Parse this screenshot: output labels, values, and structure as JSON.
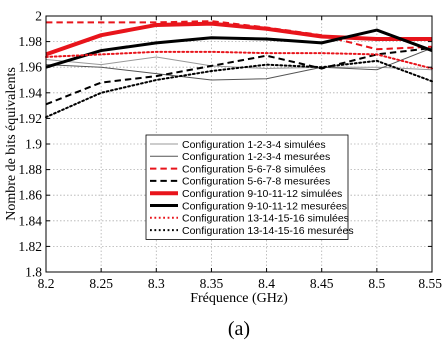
{
  "chart_data": {
    "type": "line",
    "title": "",
    "xlabel": "Fréquence (GHz)",
    "ylabel": "Nombre de bits équivalents",
    "caption": "(a)",
    "x": [
      8.2,
      8.25,
      8.3,
      8.35,
      8.4,
      8.45,
      8.5,
      8.55
    ],
    "xlim": [
      8.2,
      8.55
    ],
    "ylim": [
      1.8,
      2.0
    ],
    "xticks": [
      "8.2",
      "8.25",
      "8.3",
      "8.35",
      "8.4",
      "8.45",
      "8.5",
      "8.55"
    ],
    "yticks": [
      "1.8",
      "1.82",
      "1.84",
      "1.86",
      "1.88",
      "1.9",
      "1.92",
      "1.94",
      "1.96",
      "1.98",
      "2"
    ],
    "grid": true,
    "legend_position": "center",
    "series": [
      {
        "name": "Configuration 1-2-3-4 simulées",
        "values": [
          1.966,
          1.962,
          1.968,
          1.961,
          1.959,
          1.96,
          1.96,
          1.958
        ],
        "color": "#999999",
        "style": "solid",
        "width": 1
      },
      {
        "name": "Configuration 1-2-3-4 mesurées",
        "values": [
          1.962,
          1.96,
          1.955,
          1.95,
          1.951,
          1.96,
          1.958,
          1.975
        ],
        "color": "#555555",
        "style": "solid",
        "width": 1
      },
      {
        "name": "Configuration 5-6-7-8 simulées",
        "values": [
          1.995,
          1.995,
          1.995,
          1.996,
          1.991,
          1.985,
          1.974,
          1.976
        ],
        "color": "#e8141b",
        "style": "dashed",
        "width": 2
      },
      {
        "name": "Configuration 5-6-7-8 mesurées",
        "values": [
          1.931,
          1.948,
          1.953,
          1.961,
          1.969,
          1.959,
          1.97,
          1.975
        ],
        "color": "#000000",
        "style": "dashed",
        "width": 2
      },
      {
        "name": "Configuration 9-10-11-12 simulées",
        "values": [
          1.97,
          1.985,
          1.993,
          1.994,
          1.99,
          1.984,
          1.982,
          1.982
        ],
        "color": "#e8141b",
        "style": "solid",
        "width": 4
      },
      {
        "name": "Configuration 9-10-11-12 mesurées",
        "values": [
          1.96,
          1.973,
          1.979,
          1.983,
          1.982,
          1.979,
          1.989,
          1.973
        ],
        "color": "#000000",
        "style": "solid",
        "width": 3
      },
      {
        "name": "Configuration 13-14-15-16 simulées",
        "values": [
          1.968,
          1.97,
          1.972,
          1.972,
          1.971,
          1.971,
          1.97,
          1.959
        ],
        "color": "#e8141b",
        "style": "dotted",
        "width": 2
      },
      {
        "name": "Configuration 13-14-15-16 mesurées",
        "values": [
          1.921,
          1.94,
          1.95,
          1.957,
          1.962,
          1.96,
          1.965,
          1.949
        ],
        "color": "#000000",
        "style": "dotted",
        "width": 2
      }
    ]
  }
}
